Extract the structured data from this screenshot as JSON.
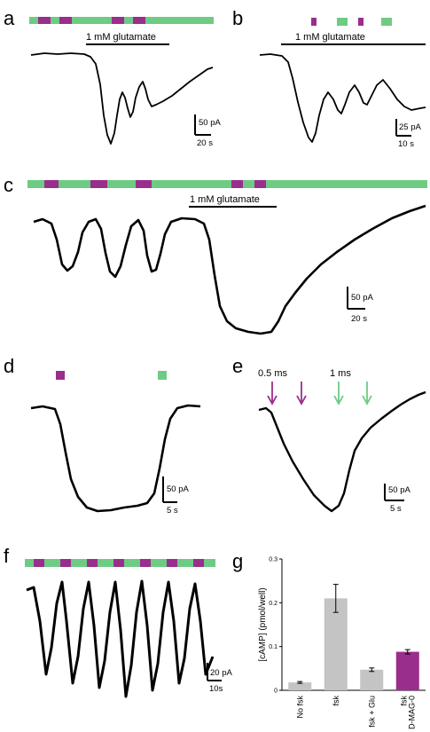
{
  "colors": {
    "green": "#6ecb84",
    "purple": "#9a2e8c",
    "gray": "#c4c4c4",
    "black": "#000000"
  },
  "panels": {
    "a": {
      "label": "a",
      "stimulus": "1 mM glutamate",
      "scale_y": "50 pA",
      "scale_x": "20 s"
    },
    "b": {
      "label": "b",
      "stimulus": "1 mM glutamate",
      "scale_y": "25 pA",
      "scale_x": "10 s"
    },
    "c": {
      "label": "c",
      "stimulus": "1 mM glutamate",
      "scale_y": "50 pA",
      "scale_x": "20 s"
    },
    "d": {
      "label": "d",
      "scale_y": "50 pA",
      "scale_x": "5 s"
    },
    "e": {
      "label": "e",
      "pulse1": "0.5 ms",
      "pulse2": "1 ms",
      "scale_y": "50 pA",
      "scale_x": "5 s"
    },
    "f": {
      "label": "f",
      "scale_y": "20 pA",
      "scale_x": "10s"
    },
    "g": {
      "label": "g"
    }
  },
  "chart_data": {
    "type": "bar",
    "ylabel": "[cAMP] (pmol/well)",
    "ylim": [
      0,
      0.3
    ],
    "yticks": [
      0,
      0.1,
      0.2,
      0.3
    ],
    "ytick_labels": [
      "0",
      "0.1",
      "0.2",
      "0.3"
    ],
    "categories": [
      "No fsk",
      "fsk",
      "fsk + Glu",
      "fsk D-MAG-0"
    ],
    "category_lines": [
      [
        "No fsk"
      ],
      [
        "fsk"
      ],
      [
        "fsk + Glu"
      ],
      [
        "fsk",
        "D-MAG-0"
      ]
    ],
    "values": [
      0.018,
      0.21,
      0.047,
      0.088
    ],
    "errors": [
      0.002,
      0.032,
      0.004,
      0.005
    ],
    "bar_colors": [
      "#c4c4c4",
      "#c4c4c4",
      "#c4c4c4",
      "#9a2e8c"
    ]
  }
}
